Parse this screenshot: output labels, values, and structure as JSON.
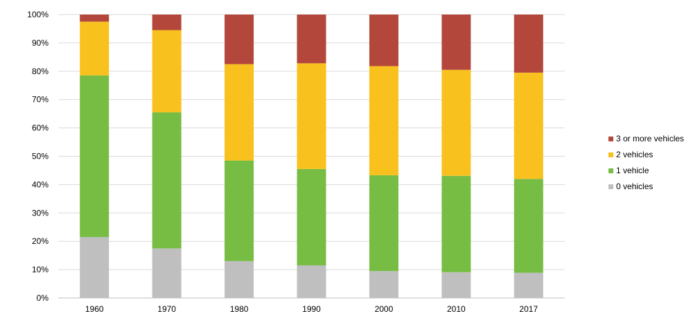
{
  "chart_data": {
    "type": "bar",
    "stacked": true,
    "percent_stacked": true,
    "categories": [
      "1960",
      "1970",
      "1980",
      "1990",
      "2000",
      "2010",
      "2017"
    ],
    "series": [
      {
        "name": "0 vehicles",
        "color": "#BFBFBF",
        "values": [
          21.5,
          17.5,
          13.0,
          11.5,
          9.5,
          9.1,
          8.9
        ]
      },
      {
        "name": "1 vehicle",
        "color": "#77BC43",
        "values": [
          57.0,
          48.0,
          35.5,
          34.0,
          33.8,
          34.0,
          33.1
        ]
      },
      {
        "name": "2 vehicles",
        "color": "#F8C11E",
        "values": [
          19.0,
          29.0,
          34.0,
          37.3,
          38.5,
          37.4,
          37.5
        ]
      },
      {
        "name": "3 or more vehicles",
        "color": "#B3473C",
        "values": [
          2.5,
          5.5,
          17.5,
          17.2,
          18.2,
          19.5,
          20.5
        ]
      }
    ],
    "y_ticks": [
      "0%",
      "10%",
      "20%",
      "30%",
      "40%",
      "50%",
      "60%",
      "70%",
      "80%",
      "90%",
      "100%"
    ],
    "ylim": [
      0,
      100
    ],
    "grid": true,
    "legend_position": "right",
    "legend_order": [
      "3 or more vehicles",
      "2 vehicles",
      "1 vehicle",
      "0 vehicles"
    ],
    "title": "",
    "xlabel": "",
    "ylabel": ""
  }
}
